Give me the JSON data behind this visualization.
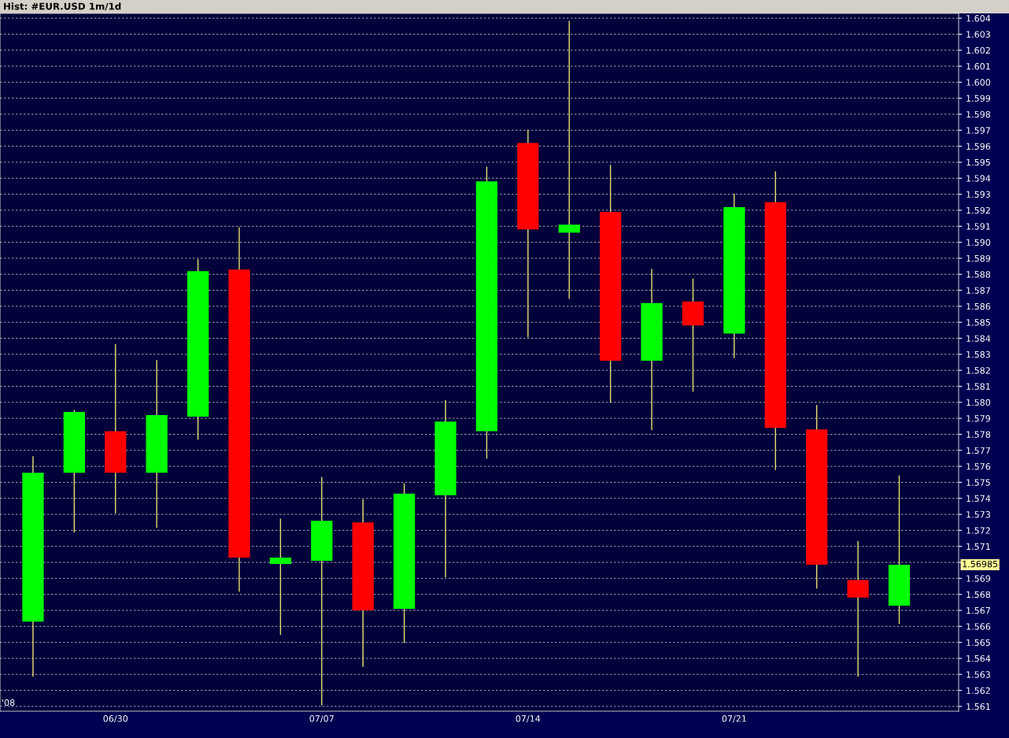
{
  "chart_data": {
    "type": "candlestick",
    "title": "Hist: #EUR.USD 1m/1d",
    "categories": [
      null,
      null,
      "06/30",
      null,
      null,
      null,
      null,
      "07/07",
      null,
      null,
      null,
      null,
      "07/14",
      null,
      null,
      null,
      null,
      "07/21",
      null,
      null,
      null,
      null
    ],
    "ohlc": [
      [
        1.5663,
        1.5766,
        1.5629,
        1.5756
      ],
      [
        1.5756,
        1.5795,
        1.5719,
        1.5794
      ],
      [
        1.5782,
        1.5836,
        1.5731,
        1.5756
      ],
      [
        1.5756,
        1.5826,
        1.5722,
        1.5792
      ],
      [
        1.5791,
        1.5889,
        1.5777,
        1.5882
      ],
      [
        1.5883,
        1.5909,
        1.5682,
        1.5703
      ],
      [
        1.5699,
        1.5727,
        1.5655,
        1.5703
      ],
      [
        1.5701,
        1.5753,
        1.5611,
        1.5726
      ],
      [
        1.5725,
        1.5739,
        1.5635,
        1.567
      ],
      [
        1.5671,
        1.5749,
        1.565,
        1.5743
      ],
      [
        1.5742,
        1.5801,
        1.5691,
        1.5788
      ],
      [
        1.5782,
        1.5947,
        1.5765,
        1.5938
      ],
      [
        1.5962,
        1.597,
        1.5841,
        1.5908
      ],
      [
        1.5906,
        1.6038,
        1.5865,
        1.5911
      ],
      [
        1.5919,
        1.5948,
        1.58,
        1.5826
      ],
      [
        1.5826,
        1.5883,
        1.5783,
        1.5862
      ],
      [
        1.5863,
        1.5877,
        1.5807,
        1.5848
      ],
      [
        1.5843,
        1.593,
        1.5828,
        1.5922
      ],
      [
        1.5925,
        1.5944,
        1.5758,
        1.5784
      ],
      [
        1.5783,
        1.5798,
        1.5684,
        1.56985
      ],
      [
        1.5689,
        1.5713,
        1.5629,
        1.5678
      ],
      [
        1.5673,
        1.5754,
        1.5662,
        1.56985
      ]
    ],
    "colors": [
      "#00ff00",
      "#00ff00",
      "#ff0000",
      "#00ff00",
      "#00ff00",
      "#ff0000",
      "#00ff00",
      "#00ff00",
      "#ff0000",
      "#00ff00",
      "#00ff00",
      "#00ff00",
      "#ff0000",
      "#00ff00",
      "#ff0000",
      "#00ff00",
      "#ff0000",
      "#00ff00",
      "#ff0000",
      "#ff0000",
      "#ff0000",
      "#00ff00"
    ],
    "ylim": [
      1.5607,
      1.6043
    ],
    "yticks": [
      {
        "value": 1.561,
        "label": "1.561"
      },
      {
        "value": 1.562,
        "label": "1.562"
      },
      {
        "value": 1.563,
        "label": "1.563"
      },
      {
        "value": 1.564,
        "label": "1.564"
      },
      {
        "value": 1.565,
        "label": "1.565"
      },
      {
        "value": 1.566,
        "label": "1.566"
      },
      {
        "value": 1.567,
        "label": "1.567"
      },
      {
        "value": 1.568,
        "label": "1.568"
      },
      {
        "value": 1.569,
        "label": "1.569"
      },
      {
        "value": 1.57,
        "label": null
      },
      {
        "value": 1.571,
        "label": "1.571"
      },
      {
        "value": 1.572,
        "label": "1.572"
      },
      {
        "value": 1.573,
        "label": "1.573"
      },
      {
        "value": 1.574,
        "label": "1.574"
      },
      {
        "value": 1.575,
        "label": "1.575"
      },
      {
        "value": 1.576,
        "label": "1.576"
      },
      {
        "value": 1.577,
        "label": "1.577"
      },
      {
        "value": 1.578,
        "label": "1.578"
      },
      {
        "value": 1.579,
        "label": "1.579"
      },
      {
        "value": 1.58,
        "label": "1.580"
      },
      {
        "value": 1.581,
        "label": "1.581"
      },
      {
        "value": 1.582,
        "label": "1.582"
      },
      {
        "value": 1.583,
        "label": "1.583"
      },
      {
        "value": 1.584,
        "label": "1.584"
      },
      {
        "value": 1.585,
        "label": "1.585"
      },
      {
        "value": 1.586,
        "label": "1.586"
      },
      {
        "value": 1.587,
        "label": "1.587"
      },
      {
        "value": 1.588,
        "label": "1.588"
      },
      {
        "value": 1.589,
        "label": "1.589"
      },
      {
        "value": 1.59,
        "label": "1.590"
      },
      {
        "value": 1.591,
        "label": "1.591"
      },
      {
        "value": 1.592,
        "label": "1.592"
      },
      {
        "value": 1.593,
        "label": "1.593"
      },
      {
        "value": 1.594,
        "label": "1.594"
      },
      {
        "value": 1.595,
        "label": "1.595"
      },
      {
        "value": 1.596,
        "label": "1.596"
      },
      {
        "value": 1.597,
        "label": "1.597"
      },
      {
        "value": 1.598,
        "label": "1.598"
      },
      {
        "value": 1.599,
        "label": "1.599"
      },
      {
        "value": 1.6,
        "label": "1.600"
      },
      {
        "value": 1.601,
        "label": "1.601"
      },
      {
        "value": 1.602,
        "label": "1.602"
      },
      {
        "value": 1.603,
        "label": "1.603"
      },
      {
        "value": 1.604,
        "label": "1.604"
      }
    ],
    "grid": "y",
    "annotations": [
      "1.56985",
      "'08"
    ]
  }
}
